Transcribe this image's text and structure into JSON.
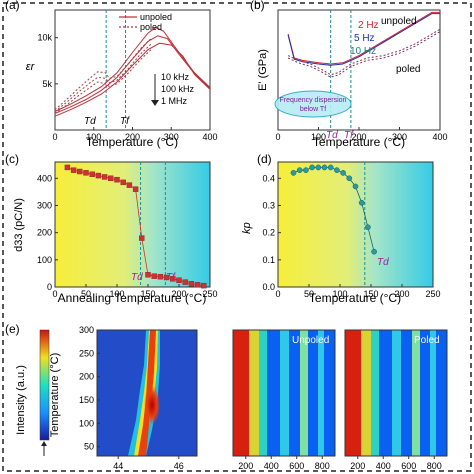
{
  "colors": {
    "unpoled": "#c0303a",
    "poled": "#a04040",
    "freq_2hz": "#d02030",
    "freq_5hz": "#2030b0",
    "freq_10hz": "#1a8080",
    "vline": "#1a9090",
    "td_label": "#a020a0",
    "d33_marker": "#d03030",
    "kp_marker": "#2a9aa0"
  },
  "panels": {
    "a": {
      "label": "(a)"
    },
    "b": {
      "label": "(b)"
    },
    "c": {
      "label": "(c)"
    },
    "d": {
      "label": "(d)"
    },
    "e": {
      "label": "(e)"
    }
  },
  "chart_data": [
    {
      "id": "a",
      "type": "line",
      "xlabel": "Temperature (°C)",
      "ylabel": "εr",
      "xlim": [
        0,
        400
      ],
      "ylim": [
        0,
        13000
      ],
      "xticks": [
        "0",
        "100",
        "200",
        "300",
        "400"
      ],
      "xtick_values": [
        0,
        100,
        200,
        300,
        400
      ],
      "yticks": [
        "5k",
        "10k"
      ],
      "ytick_values": [
        5000,
        10000
      ],
      "legend": [
        "unpoled",
        "poled"
      ],
      "freq_labels": [
        "10 kHz",
        "100 kHz",
        "1 MHz"
      ],
      "annotations": [
        "Td",
        "Tf"
      ],
      "vlines": [
        132,
        182
      ],
      "series": [
        {
          "name": "unpoled",
          "style": "solid",
          "x": [
            0,
            40,
            80,
            120,
            160,
            200,
            240,
            260,
            280,
            320,
            360,
            400
          ],
          "y": [
            2000,
            2800,
            3700,
            4700,
            6200,
            8400,
            10500,
            11100,
            10700,
            8400,
            6200,
            4600
          ]
        },
        {
          "name": "unpoled",
          "style": "solid",
          "x": [
            0,
            40,
            80,
            120,
            160,
            200,
            240,
            265,
            290,
            320,
            360,
            400
          ],
          "y": [
            1800,
            2500,
            3300,
            4300,
            5700,
            7700,
            9600,
            10200,
            9900,
            8200,
            6100,
            4500
          ]
        },
        {
          "name": "unpoled",
          "style": "solid",
          "x": [
            0,
            40,
            80,
            120,
            160,
            200,
            240,
            270,
            300,
            330,
            360,
            400
          ],
          "y": [
            1500,
            2200,
            3000,
            3900,
            5200,
            7000,
            8700,
            9400,
            9200,
            8000,
            6000,
            4400
          ]
        },
        {
          "name": "poled",
          "style": "dash",
          "x": [
            0,
            30,
            60,
            90,
            110,
            130,
            140,
            160,
            190,
            220,
            250
          ],
          "y": [
            2200,
            3300,
            4500,
            5600,
            6300,
            6200,
            5600,
            5800,
            7200,
            8800,
            10000
          ]
        },
        {
          "name": "poled",
          "style": "dash",
          "x": [
            0,
            30,
            60,
            90,
            110,
            130,
            140,
            160,
            190,
            220,
            250
          ],
          "y": [
            2000,
            3000,
            4100,
            5100,
            5700,
            5600,
            5100,
            5400,
            6700,
            8200,
            9400
          ]
        },
        {
          "name": "poled",
          "style": "dash",
          "x": [
            0,
            30,
            60,
            90,
            110,
            130,
            140,
            160,
            190,
            220,
            250
          ],
          "y": [
            1800,
            2700,
            3700,
            4600,
            5200,
            5000,
            4700,
            5000,
            6200,
            7600,
            8800
          ]
        }
      ]
    },
    {
      "id": "b",
      "type": "line",
      "xlabel": "Temperature (°C)",
      "ylabel": "E' (GPa)",
      "xlim": [
        0,
        400
      ],
      "ylim": [
        0,
        100
      ],
      "xticks": [
        "0",
        "100",
        "200",
        "300",
        "400"
      ],
      "xtick_values": [
        0,
        100,
        200,
        300,
        400
      ],
      "legend": [
        "2 Hz",
        "5 Hz",
        "10 Hz"
      ],
      "labels": [
        "unpoled",
        "poled"
      ],
      "annotations": [
        "Td",
        "Tf"
      ],
      "callout": [
        "Frequency dispersion",
        "below Tf"
      ],
      "vlines": [
        130,
        180
      ],
      "series": [
        {
          "name": "unpoled",
          "style": "solid",
          "x": [
            25,
            40,
            60,
            100,
            130,
            160,
            200,
            240,
            280,
            320,
            360,
            380,
            400
          ],
          "y": [
            80,
            60,
            58,
            56,
            55,
            56,
            62,
            70,
            78,
            86,
            94,
            98,
            98
          ]
        },
        {
          "name": "unpoled",
          "style": "solid",
          "x": [
            25,
            40,
            60,
            100,
            130,
            160,
            200,
            240,
            280,
            320,
            360,
            380,
            400
          ],
          "y": [
            79,
            59,
            57,
            55,
            54,
            55,
            61,
            69,
            77,
            85,
            93,
            97,
            97
          ]
        },
        {
          "name": "poled",
          "style": "dash",
          "x": [
            25,
            50,
            80,
            110,
            130,
            150,
            180,
            220,
            260,
            300,
            340,
            380,
            400
          ],
          "y": [
            62,
            58,
            55,
            50,
            46,
            48,
            55,
            60,
            62,
            66,
            72,
            80,
            84
          ]
        },
        {
          "name": "poled",
          "style": "dash",
          "x": [
            25,
            50,
            80,
            110,
            130,
            150,
            180,
            220,
            260,
            300,
            340,
            380,
            400
          ],
          "y": [
            60,
            56,
            53,
            48,
            44,
            46,
            53,
            58,
            60,
            64,
            70,
            78,
            82
          ]
        }
      ]
    },
    {
      "id": "c",
      "type": "scatter",
      "xlabel": "Annealing Temperature (°C)",
      "ylabel": "d33 (pC/N)",
      "xlim": [
        0,
        250
      ],
      "ylim": [
        0,
        460
      ],
      "xticks": [
        "0",
        "50",
        "100",
        "150",
        "200",
        "250"
      ],
      "xtick_values": [
        0,
        50,
        100,
        150,
        200,
        250
      ],
      "yticks": [
        "0",
        "100",
        "200",
        "300",
        "400"
      ],
      "ytick_values": [
        0,
        100,
        200,
        300,
        400
      ],
      "annotations": [
        "Td",
        "Tf"
      ],
      "vlines": [
        138,
        178
      ],
      "x": [
        20,
        30,
        40,
        50,
        60,
        70,
        80,
        90,
        100,
        110,
        120,
        130,
        140,
        150,
        160,
        170,
        180,
        190,
        200,
        210,
        220,
        230,
        240
      ],
      "y": [
        440,
        430,
        425,
        420,
        415,
        410,
        405,
        400,
        395,
        385,
        375,
        360,
        180,
        45,
        40,
        38,
        35,
        30,
        25,
        18,
        12,
        8,
        5
      ]
    },
    {
      "id": "d",
      "type": "scatter",
      "xlabel": "Temperature (°C)",
      "ylabel": "kp",
      "xlim": [
        0,
        250
      ],
      "ylim": [
        0,
        0.46
      ],
      "xticks": [
        "0",
        "50",
        "100",
        "150",
        "200",
        "250"
      ],
      "xtick_values": [
        0,
        50,
        100,
        150,
        200,
        250
      ],
      "yticks": [
        "0.0",
        "0.1",
        "0.2",
        "0.3",
        "0.4"
      ],
      "ytick_values": [
        0,
        0.1,
        0.2,
        0.3,
        0.4
      ],
      "annotations": [
        "Td"
      ],
      "vlines": [
        140
      ],
      "x": [
        25,
        35,
        45,
        55,
        65,
        75,
        85,
        95,
        105,
        115,
        125,
        135,
        145,
        155
      ],
      "y": [
        0.42,
        0.43,
        0.43,
        0.44,
        0.44,
        0.44,
        0.44,
        0.43,
        0.42,
        0.4,
        0.37,
        0.31,
        0.22,
        0.13
      ]
    },
    {
      "id": "e",
      "type": "heatmap",
      "ylabel": "Temperature (°C)",
      "colorbar_label": "Intensity (a.u.)",
      "yticks": [
        "50",
        "100",
        "150",
        "200",
        "250",
        "300"
      ],
      "ytick_values": [
        50,
        100,
        150,
        200,
        250,
        300
      ],
      "ylim": [
        30,
        300
      ],
      "maps": [
        {
          "xticks": [
            "44",
            "46"
          ],
          "xtick_values": [
            44,
            46
          ],
          "xlim": [
            43.3,
            46.6
          ]
        },
        {
          "title": "Unpoled",
          "xticks": [
            "200",
            "400",
            "600",
            "800"
          ],
          "xtick_values": [
            200,
            400,
            600,
            800
          ],
          "xlim": [
            100,
            900
          ]
        },
        {
          "title": "Poled",
          "xticks": [
            "200",
            "400",
            "600",
            "800"
          ],
          "xtick_values": [
            200,
            400,
            600,
            800
          ],
          "xlim": [
            100,
            900
          ]
        }
      ]
    }
  ]
}
